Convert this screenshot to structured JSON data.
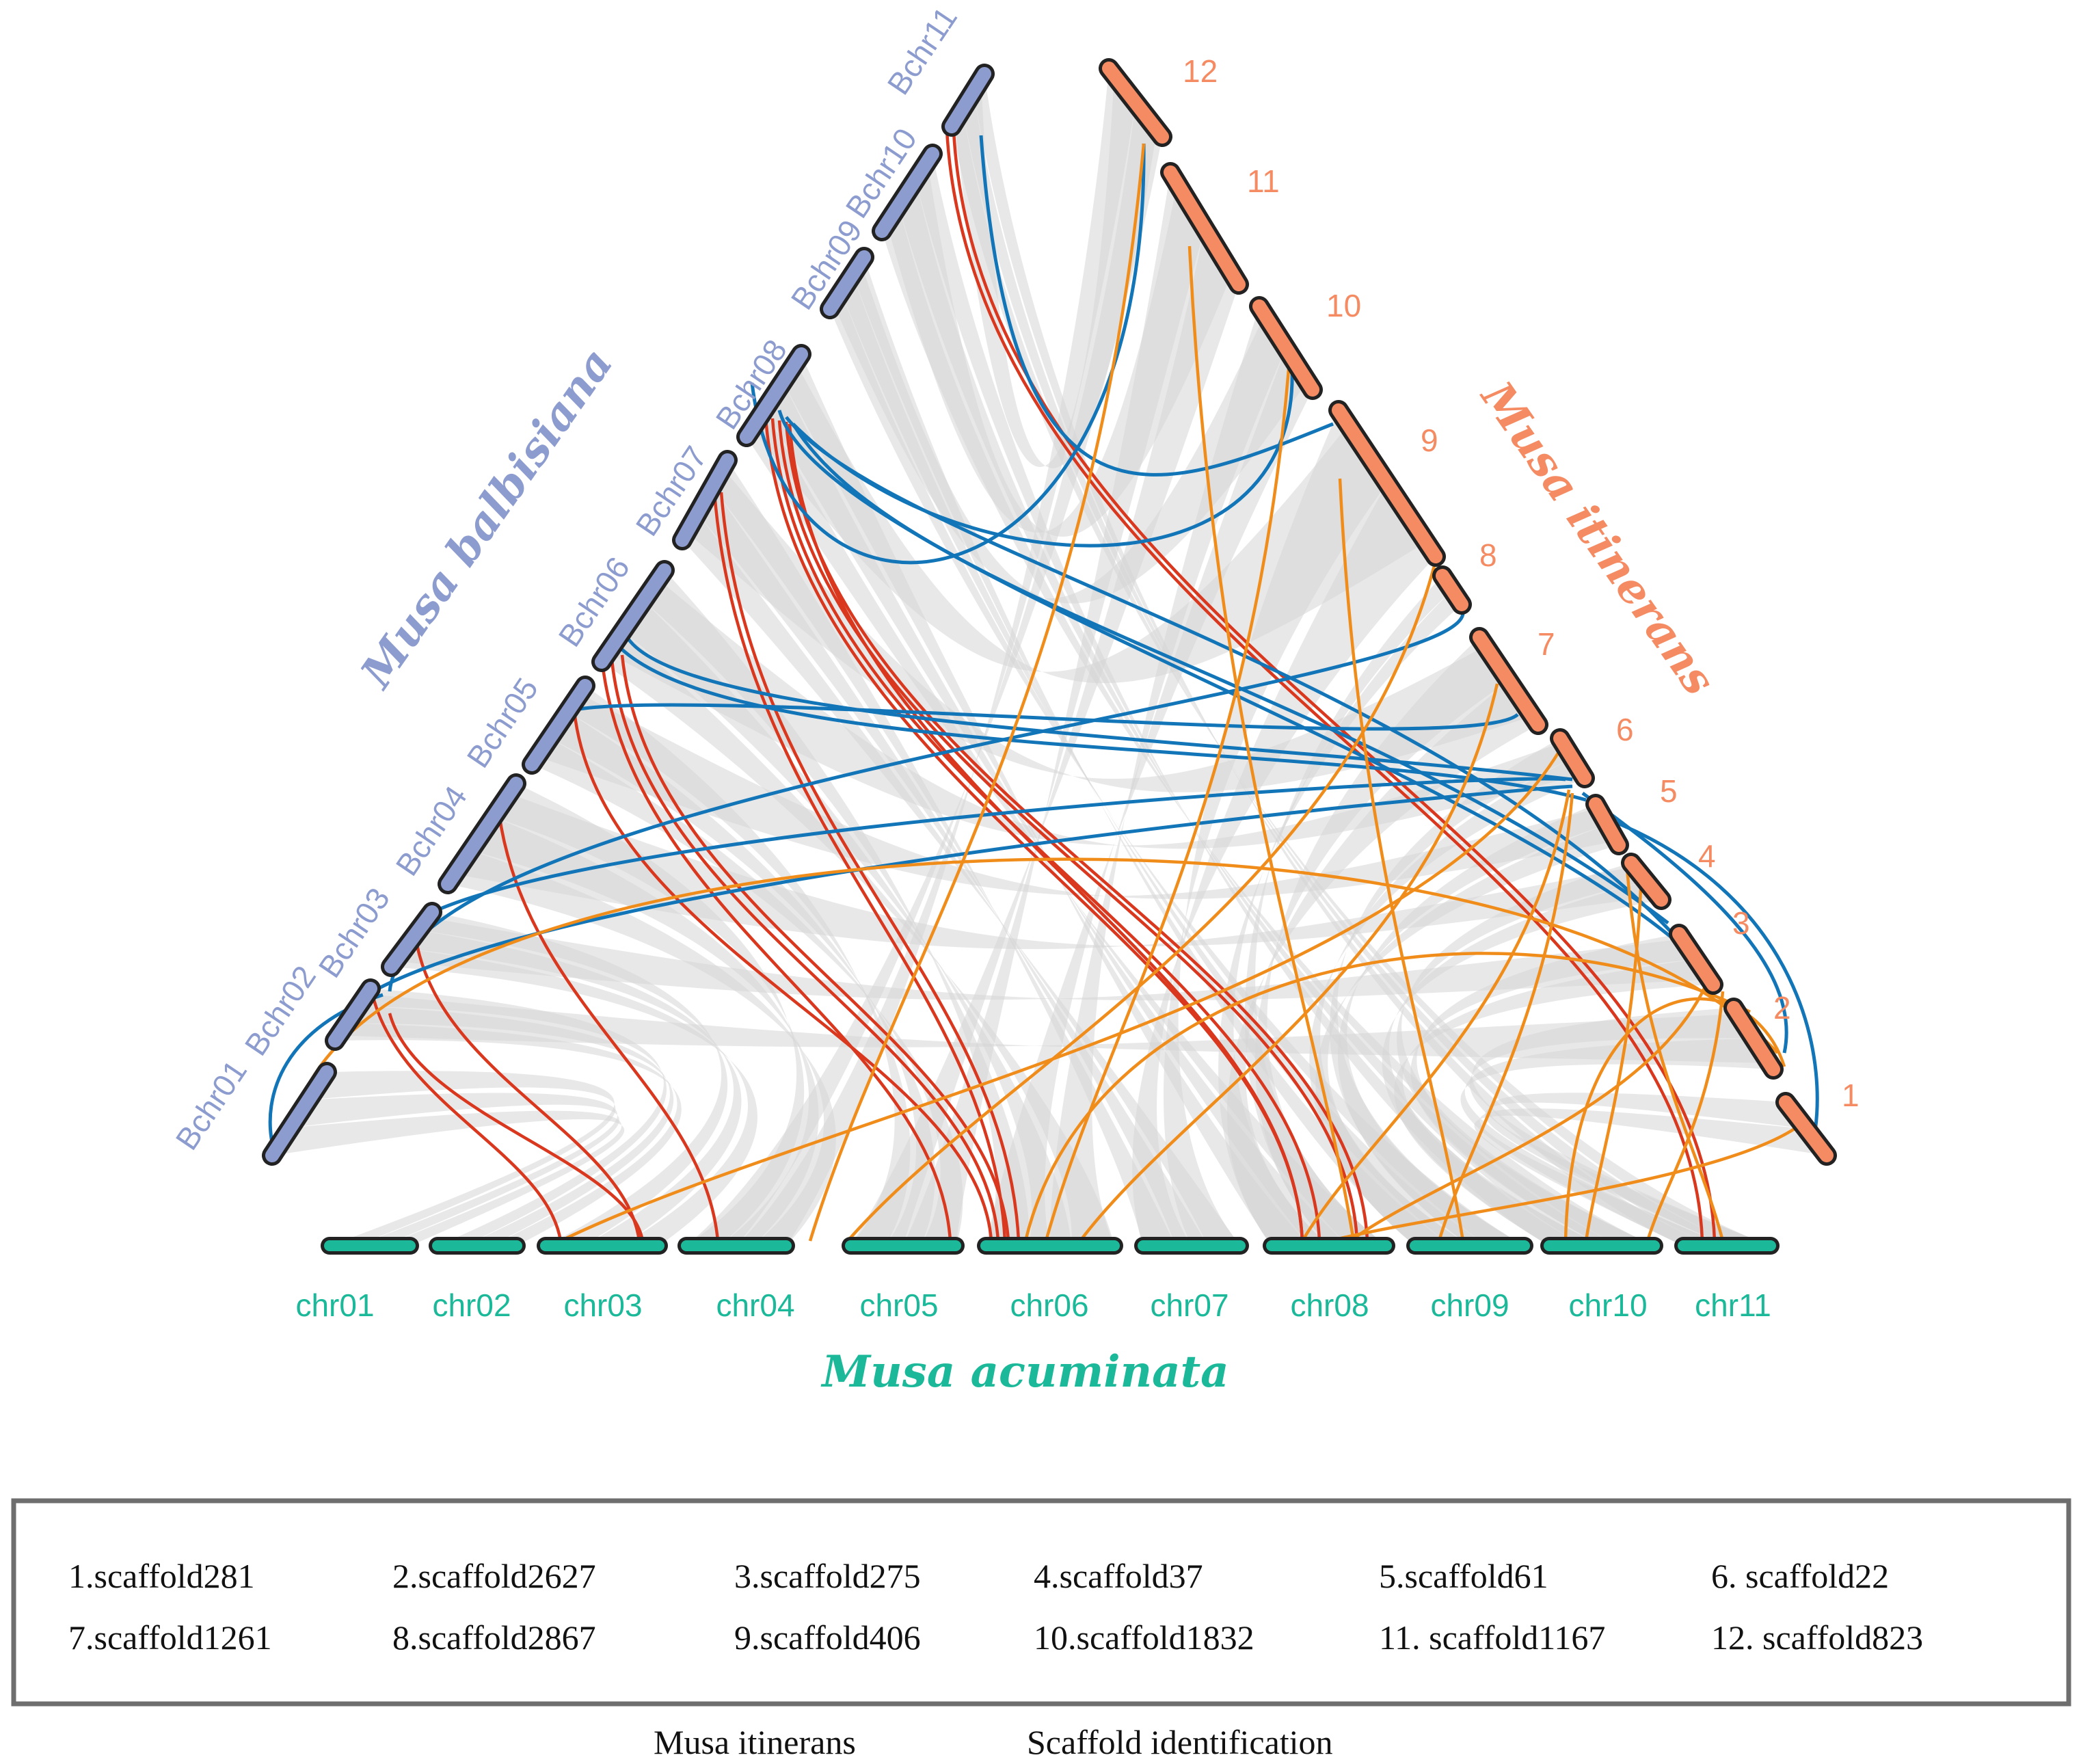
{
  "colors": {
    "acuminata": "#1bb99a",
    "balbisiana": "#8d9ccf",
    "itinerans": "#f58b62",
    "link_red": "#d9381e",
    "link_blue": "#1175b8",
    "link_orange": "#f08c1a",
    "background_links": "#d6d6d6",
    "chromosome_outline": "#222222"
  },
  "species": {
    "balbisiana": "Musa balbisiana",
    "itinerans": "Musa itinerans",
    "acuminata": "Musa acuminata"
  },
  "bottom_chromosomes": [
    "chr01",
    "chr02",
    "chr03",
    "chr04",
    "chr05",
    "chr06",
    "chr07",
    "chr08",
    "chr09",
    "chr10",
    "chr11"
  ],
  "left_chromosomes": [
    "Bchr01",
    "Bchr02",
    "Bchr03",
    "Bchr04",
    "Bchr05",
    "Bchr06",
    "Bchr07",
    "Bchr08",
    "Bchr09",
    "Bchr10",
    "Bchr11"
  ],
  "right_scaffolds": [
    "1",
    "2",
    "3",
    "4",
    "5",
    "6",
    "7",
    "8",
    "9",
    "10",
    "11",
    "12"
  ],
  "legend": {
    "items": [
      "1.scaffold281",
      "2.scaffold2627",
      "3.scaffold275",
      "4.scaffold37",
      "5.scaffold61",
      "6. scaffold22",
      "7.scaffold1261",
      "8.scaffold2867",
      "9.scaffold406",
      "10.scaffold1832",
      "11. scaffold1167",
      "12. scaffold823"
    ],
    "caption_left": "Musa itinerans",
    "caption_right": "Scaffold identification"
  }
}
